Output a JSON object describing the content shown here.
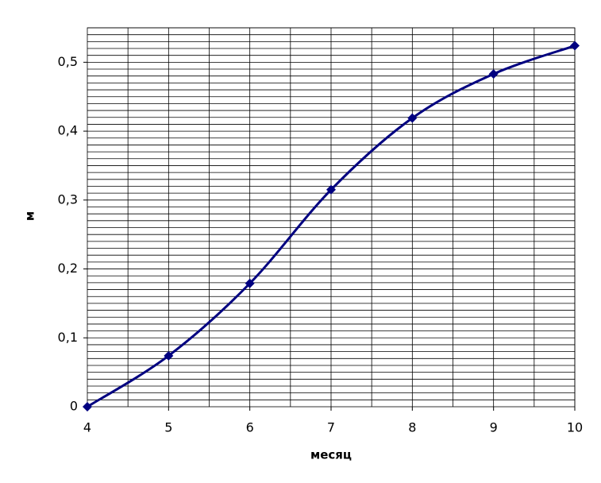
{
  "chart_data": {
    "type": "line",
    "x_label": "месяц",
    "y_label": "м",
    "x": [
      4,
      5,
      6,
      7,
      8,
      9,
      10
    ],
    "series": [
      {
        "color": "#000080",
        "values": [
          0,
          0.074,
          0.179,
          0.315,
          0.419,
          0.483,
          0.524
        ]
      }
    ],
    "smooth": true,
    "marker": "diamond",
    "xlim": [
      4,
      10
    ],
    "xticks": [
      4,
      5,
      6,
      7,
      8,
      9,
      10
    ],
    "ylim": [
      0,
      0.55
    ],
    "yticks": [
      0,
      {
        "value": 0.1,
        "label": "0,1"
      },
      {
        "value": 0.2,
        "label": "0,2"
      },
      {
        "value": 0.3,
        "label": "0,3"
      },
      {
        "value": 0.4,
        "label": "0,4"
      },
      {
        "value": 0.5,
        "label": "0,5"
      }
    ],
    "grid": true,
    "xgrid_step": 0.5,
    "ygrid_step": 0.01
  }
}
